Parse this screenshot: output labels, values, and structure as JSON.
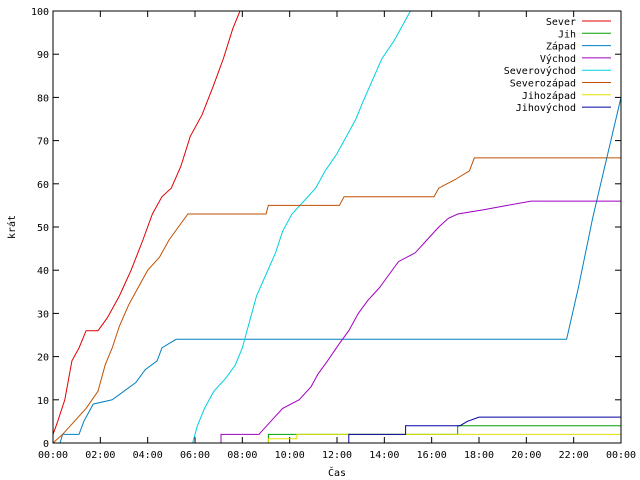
{
  "chart_data": {
    "type": "line",
    "xlabel": "Čas",
    "ylabel": "krát",
    "xlim": [
      0,
      24
    ],
    "ylim": [
      0,
      100
    ],
    "x_ticks": [
      {
        "v": 0,
        "label": "00:00"
      },
      {
        "v": 2,
        "label": "02:00"
      },
      {
        "v": 4,
        "label": "04:00"
      },
      {
        "v": 6,
        "label": "06:00"
      },
      {
        "v": 8,
        "label": "08:00"
      },
      {
        "v": 10,
        "label": "10:00"
      },
      {
        "v": 12,
        "label": "12:00"
      },
      {
        "v": 14,
        "label": "14:00"
      },
      {
        "v": 16,
        "label": "16:00"
      },
      {
        "v": 18,
        "label": "18:00"
      },
      {
        "v": 20,
        "label": "20:00"
      },
      {
        "v": 22,
        "label": "22:00"
      },
      {
        "v": 24,
        "label": "00:00"
      }
    ],
    "y_ticks": [
      {
        "v": 0,
        "label": "0"
      },
      {
        "v": 10,
        "label": "10"
      },
      {
        "v": 20,
        "label": "20"
      },
      {
        "v": 30,
        "label": "30"
      },
      {
        "v": 40,
        "label": "40"
      },
      {
        "v": 50,
        "label": "50"
      },
      {
        "v": 60,
        "label": "60"
      },
      {
        "v": 70,
        "label": "70"
      },
      {
        "v": 80,
        "label": "80"
      },
      {
        "v": 90,
        "label": "90"
      },
      {
        "v": 100,
        "label": "100"
      }
    ],
    "grid": false,
    "legend_position": "top-right",
    "series": [
      {
        "name": "Sever",
        "color": "#e00000",
        "points": [
          [
            0,
            2
          ],
          [
            0.2,
            5
          ],
          [
            0.5,
            10
          ],
          [
            0.8,
            19
          ],
          [
            1.1,
            22
          ],
          [
            1.4,
            26
          ],
          [
            1.9,
            26
          ],
          [
            2.3,
            29
          ],
          [
            2.8,
            34
          ],
          [
            3.3,
            40
          ],
          [
            3.8,
            47
          ],
          [
            4.2,
            53
          ],
          [
            4.6,
            57
          ],
          [
            5.0,
            59
          ],
          [
            5.4,
            64
          ],
          [
            5.8,
            71
          ],
          [
            6.3,
            76
          ],
          [
            6.8,
            83
          ],
          [
            7.2,
            89
          ],
          [
            7.6,
            96
          ],
          [
            7.9,
            100
          ]
        ]
      },
      {
        "name": "Jih",
        "color": "#00a000",
        "points": [
          [
            0,
            0
          ],
          [
            9.1,
            0
          ],
          [
            9.1,
            2
          ],
          [
            17.1,
            2
          ],
          [
            17.1,
            4
          ],
          [
            24,
            4
          ]
        ]
      },
      {
        "name": "Západ",
        "color": "#0080c0",
        "points": [
          [
            0,
            0
          ],
          [
            0.3,
            0
          ],
          [
            0.4,
            2
          ],
          [
            1.1,
            2
          ],
          [
            1.3,
            5
          ],
          [
            1.7,
            9
          ],
          [
            2.5,
            10
          ],
          [
            3.0,
            12
          ],
          [
            3.5,
            14
          ],
          [
            3.9,
            17
          ],
          [
            4.4,
            19
          ],
          [
            4.6,
            22
          ],
          [
            4.9,
            23
          ],
          [
            5.2,
            24
          ],
          [
            21.7,
            24
          ],
          [
            22.2,
            36
          ],
          [
            22.8,
            52
          ],
          [
            23.4,
            66
          ],
          [
            24,
            80
          ]
        ]
      },
      {
        "name": "Východ",
        "color": "#a000c0",
        "points": [
          [
            0,
            0
          ],
          [
            7.1,
            0
          ],
          [
            7.1,
            2
          ],
          [
            8.7,
            2
          ],
          [
            9.2,
            5
          ],
          [
            9.7,
            8
          ],
          [
            10.4,
            10
          ],
          [
            10.9,
            13
          ],
          [
            11.2,
            16
          ],
          [
            11.6,
            19
          ],
          [
            12.1,
            23
          ],
          [
            12.5,
            26
          ],
          [
            12.9,
            30
          ],
          [
            13.3,
            33
          ],
          [
            13.8,
            36
          ],
          [
            14.2,
            39
          ],
          [
            14.6,
            42
          ],
          [
            15.3,
            44
          ],
          [
            15.8,
            47
          ],
          [
            16.3,
            50
          ],
          [
            16.7,
            52
          ],
          [
            17.1,
            53
          ],
          [
            18.2,
            54
          ],
          [
            19.2,
            55
          ],
          [
            20.2,
            56
          ],
          [
            24,
            56
          ]
        ]
      },
      {
        "name": "Severovýchod",
        "color": "#00d0e0",
        "points": [
          [
            0,
            0
          ],
          [
            5.9,
            0
          ],
          [
            6.1,
            4
          ],
          [
            6.4,
            8
          ],
          [
            6.8,
            12
          ],
          [
            7.3,
            15
          ],
          [
            7.7,
            18
          ],
          [
            8.0,
            22
          ],
          [
            8.3,
            28
          ],
          [
            8.6,
            34
          ],
          [
            9.0,
            39
          ],
          [
            9.4,
            44
          ],
          [
            9.7,
            49
          ],
          [
            10.1,
            53
          ],
          [
            10.6,
            56
          ],
          [
            11.1,
            59
          ],
          [
            11.5,
            63
          ],
          [
            12.0,
            67
          ],
          [
            12.4,
            71
          ],
          [
            12.8,
            75
          ],
          [
            13.1,
            79
          ],
          [
            13.5,
            84
          ],
          [
            13.9,
            89
          ],
          [
            14.4,
            93
          ],
          [
            14.8,
            97
          ],
          [
            15.1,
            100
          ]
        ]
      },
      {
        "name": "Severozápad",
        "color": "#c05000",
        "points": [
          [
            0,
            0
          ],
          [
            0.4,
            2
          ],
          [
            0.9,
            5
          ],
          [
            1.4,
            8
          ],
          [
            1.9,
            12
          ],
          [
            2.2,
            18
          ],
          [
            2.5,
            22
          ],
          [
            2.8,
            27
          ],
          [
            3.2,
            32
          ],
          [
            3.6,
            36
          ],
          [
            4.0,
            40
          ],
          [
            4.5,
            43
          ],
          [
            4.9,
            47
          ],
          [
            5.3,
            50
          ],
          [
            5.7,
            53
          ],
          [
            9.0,
            53
          ],
          [
            9.1,
            55
          ],
          [
            12.1,
            55
          ],
          [
            12.3,
            57
          ],
          [
            16.1,
            57
          ],
          [
            16.3,
            59
          ],
          [
            17.0,
            61
          ],
          [
            17.6,
            63
          ],
          [
            17.8,
            66
          ],
          [
            24,
            66
          ]
        ]
      },
      {
        "name": "Jihozápad",
        "color": "#e0e000",
        "points": [
          [
            0,
            0
          ],
          [
            9.1,
            0
          ],
          [
            9.1,
            1
          ],
          [
            10.3,
            1
          ],
          [
            10.3,
            2
          ],
          [
            24,
            2
          ]
        ]
      },
      {
        "name": "Jihovýchod",
        "color": "#0000a0",
        "points": [
          [
            0,
            0
          ],
          [
            12.5,
            0
          ],
          [
            12.5,
            2
          ],
          [
            14.9,
            2
          ],
          [
            14.9,
            4
          ],
          [
            17.2,
            4
          ],
          [
            17.5,
            5
          ],
          [
            18.0,
            6
          ],
          [
            24,
            6
          ]
        ]
      }
    ]
  }
}
